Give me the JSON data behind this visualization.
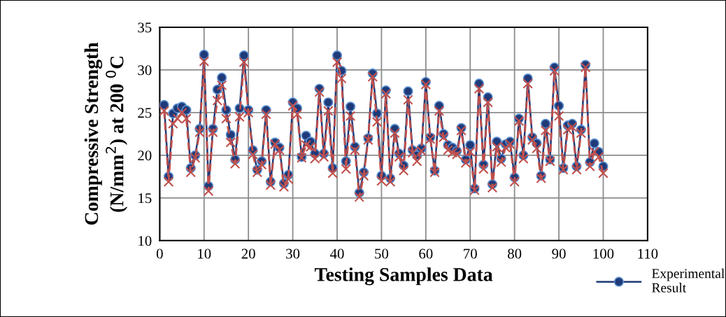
{
  "chart_data": {
    "type": "line",
    "xlabel": "Testing Samples Data",
    "ylabel": "Compressive Strength\n(N/mm$^{2}$) at 200 $^{0}$C",
    "x": [
      1,
      2,
      3,
      4,
      5,
      6,
      7,
      8,
      9,
      10,
      11,
      12,
      13,
      14,
      15,
      16,
      17,
      18,
      19,
      20,
      21,
      22,
      23,
      24,
      25,
      26,
      27,
      28,
      29,
      30,
      31,
      32,
      33,
      34,
      35,
      36,
      37,
      38,
      39,
      40,
      41,
      42,
      43,
      44,
      45,
      46,
      47,
      48,
      49,
      50,
      51,
      52,
      53,
      54,
      55,
      56,
      57,
      58,
      59,
      60,
      61,
      62,
      63,
      64,
      65,
      66,
      67,
      68,
      69,
      70,
      71,
      72,
      73,
      74,
      75,
      76,
      77,
      78,
      79,
      80,
      81,
      82,
      83,
      84,
      85,
      86,
      87,
      88,
      89,
      90,
      91,
      92,
      93,
      94,
      95,
      96,
      97,
      98,
      99,
      100
    ],
    "series": [
      {
        "name": "Experimental Result",
        "color": "#1f3a78",
        "marker": "circle",
        "line_style": "solid",
        "values": [
          25.9,
          17.5,
          24.9,
          25.5,
          25.7,
          25.3,
          18.5,
          20.0,
          23.1,
          31.8,
          16.4,
          23.1,
          27.7,
          29.1,
          25.3,
          22.4,
          19.5,
          25.5,
          31.7,
          25.3,
          20.6,
          18.3,
          19.3,
          25.3,
          16.9,
          21.5,
          20.9,
          16.7,
          17.7,
          26.2,
          25.5,
          19.8,
          22.3,
          21.6,
          20.2,
          27.8,
          20.2,
          26.2,
          18.5,
          31.7,
          29.9,
          19.3,
          25.7,
          21.0,
          15.6,
          18.0,
          22.0,
          29.6,
          24.9,
          17.6,
          27.6,
          17.3,
          23.1,
          20.2,
          18.8,
          27.5,
          20.6,
          20.0,
          20.8,
          28.6,
          22.1,
          18.2,
          25.8,
          22.5,
          21.2,
          20.9,
          20.5,
          23.2,
          19.5,
          21.2,
          16.1,
          28.4,
          18.9,
          26.8,
          16.6,
          21.6,
          19.6,
          21.3,
          21.6,
          17.4,
          24.3,
          20.0,
          29.0,
          22.1,
          21.4,
          17.6,
          23.7,
          19.5,
          30.3,
          25.8,
          18.5,
          23.5,
          23.7,
          18.7,
          23.0,
          30.6,
          19.2,
          21.4,
          20.4,
          18.7
        ]
      },
      {
        "color": "#c0504d",
        "marker": "cross",
        "line_style": "dashed",
        "values": [
          25.2,
          16.9,
          23.7,
          24.3,
          25.0,
          24.3,
          18.0,
          19.7,
          22.7,
          31.0,
          15.8,
          22.7,
          26.4,
          28.2,
          24.3,
          21.5,
          19.0,
          24.5,
          30.9,
          25.0,
          20.1,
          18.0,
          18.9,
          24.8,
          16.5,
          21.3,
          20.6,
          16.3,
          17.2,
          25.8,
          24.8,
          19.7,
          21.2,
          21.0,
          19.6,
          27.4,
          19.8,
          25.2,
          17.9,
          30.9,
          29.0,
          18.4,
          24.6,
          20.6,
          15.1,
          17.6,
          21.8,
          29.2,
          23.9,
          17.0,
          27.2,
          16.9,
          22.6,
          19.8,
          18.2,
          26.5,
          20.3,
          19.3,
          20.5,
          28.3,
          21.9,
          18.0,
          25.2,
          22.1,
          20.6,
          20.3,
          20.1,
          22.9,
          19.1,
          20.4,
          15.9,
          27.8,
          18.4,
          26.2,
          16.2,
          21.0,
          19.2,
          20.9,
          21.3,
          16.9,
          24.0,
          19.6,
          28.4,
          21.8,
          20.8,
          17.3,
          22.9,
          19.3,
          29.9,
          24.6,
          18.3,
          23.0,
          23.3,
          18.3,
          22.6,
          30.3,
          18.7,
          20.4,
          19.8,
          17.9
        ]
      }
    ],
    "xlim": [
      0,
      110
    ],
    "xticks": [
      0,
      10,
      20,
      30,
      40,
      50,
      60,
      70,
      80,
      90,
      100,
      110
    ],
    "ylim": [
      10,
      35
    ],
    "yticks": [
      10,
      15,
      20,
      25,
      30,
      35
    ],
    "grid": true,
    "legend": "bottom right"
  }
}
